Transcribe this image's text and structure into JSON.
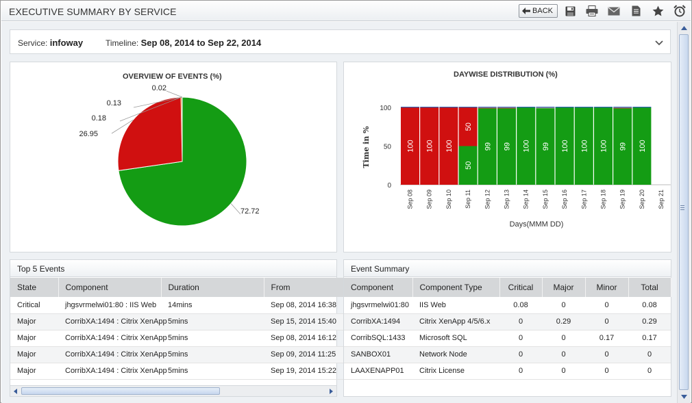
{
  "window": {
    "title": "EXECUTIVE SUMMARY BY SERVICE",
    "back_label": "BACK",
    "toolbar_icons": [
      "save-icon",
      "print-icon",
      "mail-icon",
      "report-icon",
      "favorite-star-icon",
      "alarm-clock-icon"
    ]
  },
  "filter": {
    "service_label": "Service:",
    "service_value": "infoway",
    "timeline_label": "Timeline:",
    "timeline_value": "Sep 08, 2014 to Sep 22, 2014"
  },
  "colors": {
    "critical": "#d01010",
    "major": "#ff8c00",
    "minor": "#2b62b4",
    "normal": "#149c14"
  },
  "chart_data": [
    {
      "type": "pie",
      "title": "OVERVIEW OF EVENTS (%)",
      "labels": [
        "72.72",
        "26.95",
        "0.18",
        "0.13",
        "0.02"
      ],
      "values": [
        72.72,
        26.95,
        0.18,
        0.13,
        0.02
      ],
      "colors": [
        "#149c14",
        "#d01010",
        "#ff8c00",
        "#2b62b4",
        "#e8d800"
      ]
    },
    {
      "type": "bar",
      "stacked": true,
      "title": "DAYWISE DISTRIBUTION (%)",
      "xlabel": "Days(MMM DD)",
      "ylabel": "Time in %",
      "ylim": [
        0,
        100
      ],
      "yticks": [
        "0",
        "50",
        "100"
      ],
      "categories": [
        "Sep 08",
        "Sep 09",
        "Sep 10",
        "Sep 11",
        "Sep 12",
        "Sep 13",
        "Sep 14",
        "Sep 15",
        "Sep 16",
        "Sep 17",
        "Sep 18",
        "Sep 19",
        "Sep 20",
        "Sep 21"
      ],
      "series": [
        {
          "values": [
            0,
            0,
            0,
            50,
            99,
            99,
            100,
            99,
            100,
            100,
            100,
            99,
            100,
            null
          ],
          "color": "#149c14",
          "labels": [
            "",
            "",
            "",
            "50",
            "99",
            "99",
            "100",
            "99",
            "100",
            "100",
            "100",
            "99",
            "100",
            ""
          ]
        },
        {
          "values": [
            100,
            100,
            100,
            50,
            0.5,
            0.5,
            0,
            0,
            0,
            0,
            0,
            0.5,
            0,
            null
          ],
          "color": "#d01010",
          "labels": [
            "100",
            "100",
            "100",
            "50",
            "",
            "",
            "",
            "",
            "",
            "",
            "",
            "",
            "",
            ""
          ]
        },
        {
          "values": [
            0,
            0,
            0,
            0,
            0.5,
            0.5,
            0,
            1,
            0,
            0,
            0,
            0.5,
            0,
            null
          ],
          "color": "#c8a0a0",
          "labels": [
            "",
            "",
            "",
            "",
            "",
            "",
            "",
            "",
            "",
            "",
            "",
            "",
            "",
            ""
          ]
        }
      ]
    }
  ],
  "top_events": {
    "title": "Top 5 Events",
    "columns": [
      "State",
      "Component",
      "Duration",
      "From"
    ],
    "rows": [
      [
        "Critical",
        "jhgsvrmelwi01:80 : IIS Web",
        "14mins",
        "Sep 08, 2014 16:38"
      ],
      [
        "Major",
        "CorribXA:1494 : Citrix XenApp",
        "5mins",
        "Sep 15, 2014 15:40"
      ],
      [
        "Major",
        "CorribXA:1494 : Citrix XenApp",
        "5mins",
        "Sep 08, 2014 16:12"
      ],
      [
        "Major",
        "CorribXA:1494 : Citrix XenApp",
        "5mins",
        "Sep 09, 2014 11:25"
      ],
      [
        "Major",
        "CorribXA:1494 : Citrix XenApp",
        "5mins",
        "Sep 19, 2014 15:22"
      ]
    ]
  },
  "event_summary": {
    "title": "Event Summary",
    "columns": [
      "Component",
      "Component Type",
      "Critical",
      "Major",
      "Minor",
      "Total"
    ],
    "rows": [
      [
        "jhgsvrmelwi01:80",
        "IIS Web",
        "0.08",
        "0",
        "0",
        "0.08"
      ],
      [
        "CorribXA:1494",
        "Citrix XenApp 4/5/6.x",
        "0",
        "0.29",
        "0",
        "0.29"
      ],
      [
        "CorribSQL:1433",
        "Microsoft SQL",
        "0",
        "0",
        "0.17",
        "0.17"
      ],
      [
        "SANBOX01",
        "Network Node",
        "0",
        "0",
        "0",
        "0"
      ],
      [
        "LAAXENAPP01",
        "Citrix License",
        "0",
        "0",
        "0",
        "0"
      ]
    ]
  }
}
